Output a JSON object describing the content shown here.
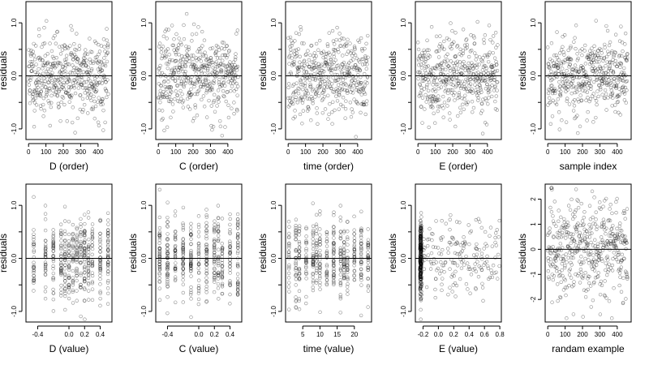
{
  "chart_data": [
    {
      "type": "scatter",
      "xlabel": "D (order)",
      "ylabel": "residuals",
      "xlim": [
        -15,
        480
      ],
      "ylim": [
        -1.2,
        1.4
      ],
      "xticks": [
        0,
        100,
        200,
        300,
        400
      ],
      "yticks": [
        -1.0,
        -0.5,
        0.0,
        0.5,
        1.0
      ],
      "yticklabels": [
        "-1.0",
        "",
        "0.0",
        "",
        "1.0"
      ],
      "hline": 0,
      "pattern": "order",
      "seed": 11
    },
    {
      "type": "scatter",
      "xlabel": "C (order)",
      "ylabel": "residuals",
      "xlim": [
        -15,
        480
      ],
      "ylim": [
        -1.2,
        1.4
      ],
      "xticks": [
        0,
        100,
        200,
        300,
        400
      ],
      "yticks": [
        -1.0,
        -0.5,
        0.0,
        0.5,
        1.0
      ],
      "yticklabels": [
        "-1.0",
        "",
        "0.0",
        "",
        "1.0"
      ],
      "hline": 0,
      "pattern": "order",
      "seed": 23
    },
    {
      "type": "scatter",
      "xlabel": "time (order)",
      "ylabel": "residuals",
      "xlim": [
        -15,
        480
      ],
      "ylim": [
        -1.2,
        1.4
      ],
      "xticks": [
        0,
        100,
        200,
        300,
        400
      ],
      "yticks": [
        -1.0,
        -0.5,
        0.0,
        0.5,
        1.0
      ],
      "yticklabels": [
        "-1.0",
        "",
        "0.0",
        "",
        "1.0"
      ],
      "hline": 0,
      "pattern": "order",
      "seed": 37
    },
    {
      "type": "scatter",
      "xlabel": "E (order)",
      "ylabel": "residuals",
      "xlim": [
        -15,
        480
      ],
      "ylim": [
        -1.2,
        1.4
      ],
      "xticks": [
        0,
        100,
        200,
        300,
        400
      ],
      "yticks": [
        -1.0,
        -0.5,
        0.0,
        0.5,
        1.0
      ],
      "yticklabels": [
        "-1.0",
        "",
        "0.0",
        "",
        "1.0"
      ],
      "hline": 0,
      "pattern": "order",
      "seed": 41
    },
    {
      "type": "scatter",
      "xlabel": "sample index",
      "ylabel": "residuals",
      "xlim": [
        -15,
        480
      ],
      "ylim": [
        -1.2,
        1.4
      ],
      "xticks": [
        0,
        100,
        200,
        300,
        400
      ],
      "yticks": [
        -1.0,
        -0.5,
        0.0,
        0.5,
        1.0
      ],
      "yticklabels": [
        "-1.0",
        "",
        "0.0",
        "",
        "1.0"
      ],
      "hline": 0,
      "pattern": "order",
      "seed": 53
    },
    {
      "type": "scatter",
      "xlabel": "D (value)",
      "ylabel": "residuals",
      "xlim": [
        -0.55,
        0.55
      ],
      "ylim": [
        -1.2,
        1.4
      ],
      "xticks": [
        -0.4,
        0.0,
        0.2,
        0.4
      ],
      "xticklabels": [
        "-0.4",
        "0.0",
        "0.2",
        "0.4"
      ],
      "yticks": [
        -1.0,
        -0.5,
        0.0,
        0.5,
        1.0
      ],
      "yticklabels": [
        "-1.0",
        "",
        "0.0",
        "",
        "1.0"
      ],
      "hline": 0,
      "pattern": "grouped",
      "levels": [
        -0.45,
        -0.3,
        -0.2,
        -0.1,
        -0.05,
        0.0,
        0.05,
        0.1,
        0.15,
        0.2,
        0.25,
        0.3,
        0.4,
        0.5
      ],
      "seed": 61
    },
    {
      "type": "scatter",
      "xlabel": "C (value)",
      "ylabel": "residuals",
      "xlim": [
        -0.55,
        0.55
      ],
      "ylim": [
        -1.2,
        1.4
      ],
      "xticks": [
        -0.4,
        0.0,
        0.2,
        0.4
      ],
      "xticklabels": [
        "-0.4",
        "0.0",
        "0.2",
        "0.4"
      ],
      "yticks": [
        -1.0,
        -0.5,
        0.0,
        0.5,
        1.0
      ],
      "yticklabels": [
        "-1.0",
        "",
        "0.0",
        "",
        "1.0"
      ],
      "hline": 0,
      "pattern": "grouped",
      "levels": [
        -0.5,
        -0.4,
        -0.3,
        -0.2,
        -0.1,
        0.0,
        0.1,
        0.2,
        0.25,
        0.3,
        0.4,
        0.5
      ],
      "seed": 67
    },
    {
      "type": "scatter",
      "xlabel": "time (value)",
      "ylabel": "residuals",
      "xlim": [
        0,
        25
      ],
      "ylim": [
        -1.2,
        1.4
      ],
      "xticks": [
        5,
        10,
        15,
        20
      ],
      "xticklabels": [
        "5",
        "10",
        "15",
        "20"
      ],
      "yticks": [
        -1.0,
        -0.5,
        0.0,
        0.5,
        1.0
      ],
      "yticklabels": [
        "-1.0",
        "",
        "0.0",
        "",
        "1.0"
      ],
      "hline": 0,
      "pattern": "grouped",
      "levels": [
        1,
        3,
        4,
        6,
        8,
        9,
        10,
        12,
        14,
        16,
        17,
        18,
        20,
        22,
        24
      ],
      "seed": 71
    },
    {
      "type": "scatter",
      "xlabel": "E (value)",
      "ylabel": "residuals",
      "xlim": [
        -0.3,
        0.82
      ],
      "ylim": [
        -1.2,
        1.4
      ],
      "xticks": [
        -0.2,
        0.0,
        0.2,
        0.4,
        0.6,
        0.8
      ],
      "xticklabels": [
        "-0.2",
        "0.0",
        "0.2",
        "0.4",
        "0.6",
        "0.8"
      ],
      "yticks": [
        -1.0,
        -0.5,
        0.0,
        0.5,
        1.0
      ],
      "yticklabels": [
        "-1.0",
        "",
        "0.0",
        "",
        "1.0"
      ],
      "hline": 0,
      "pattern": "clustered",
      "cluster_x": -0.23,
      "seed": 79
    },
    {
      "type": "scatter",
      "xlabel": "randam example",
      "ylabel": "residuals",
      "xlim": [
        -15,
        480
      ],
      "ylim": [
        -2.9,
        2.6
      ],
      "xticks": [
        0,
        100,
        200,
        300,
        400
      ],
      "yticks": [
        -2,
        -1,
        0,
        1,
        2
      ],
      "yticklabels": [
        "-2",
        "-1",
        "0",
        "1",
        "2"
      ],
      "hline": 0,
      "pattern": "random",
      "seed": 83
    }
  ]
}
